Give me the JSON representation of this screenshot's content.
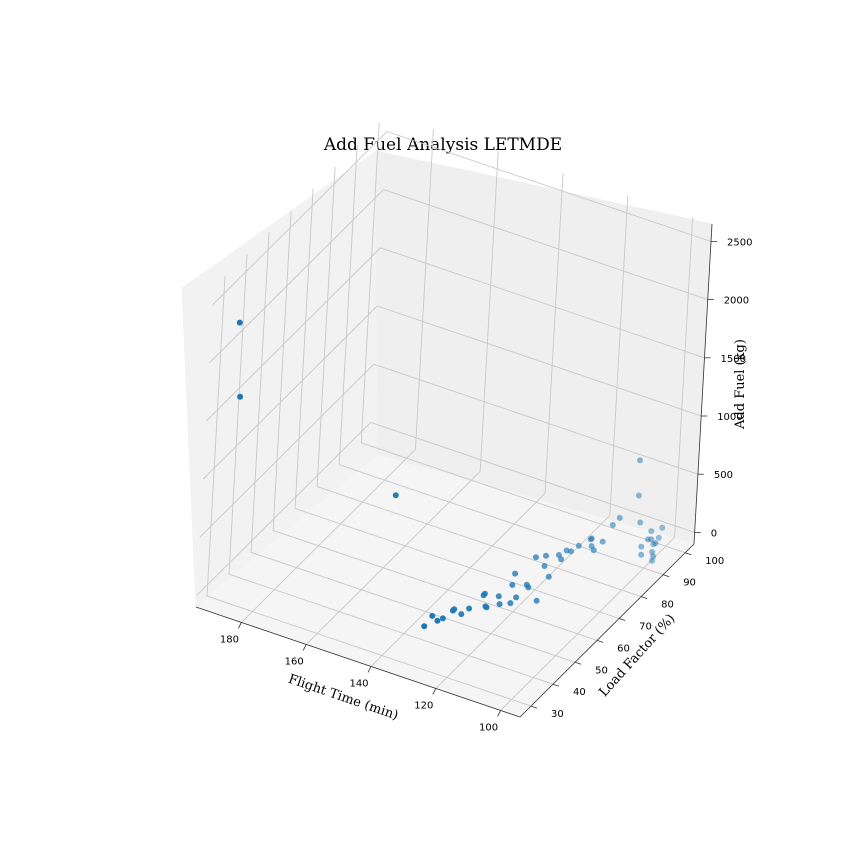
{
  "chart_data": {
    "type": "scatter",
    "title": "Add Fuel Analysis LETMDE",
    "xlabel": "Flight Time (min)",
    "ylabel": "Load Factor (%)",
    "zlabel": "Add Fuel (kg)",
    "xlim": [
      94,
      194
    ],
    "ylim": [
      25,
      104
    ],
    "zlim": [
      -100,
      2650
    ],
    "xticks": [
      100,
      120,
      140,
      160,
      180
    ],
    "yticks": [
      30,
      40,
      50,
      60,
      70,
      80,
      90,
      100
    ],
    "zticks": [
      0,
      500,
      1000,
      1500,
      2000,
      2500
    ],
    "grid": true,
    "marker_color": "#1f77b4",
    "series": [
      {
        "x": [
          190,
          188,
          165,
          108,
          110,
          105,
          112,
          109,
          111,
          115,
          111,
          113,
          115,
          114,
          116,
          118,
          117,
          119,
          121,
          120,
          124,
          113,
          117,
          118,
          119,
          120,
          121,
          122,
          123,
          124,
          125,
          126,
          127,
          128,
          129,
          130,
          131,
          132,
          133,
          134,
          104,
          102,
          103,
          101,
          102,
          100,
          99,
          101,
          103,
          100,
          98,
          97,
          125,
          120,
          116
        ],
        "y": [
          32,
          31,
          72,
          98,
          93,
          95,
          93,
          100,
          87,
          88,
          83,
          85,
          82,
          86,
          80,
          81,
          77,
          79,
          76,
          74,
          76,
          60,
          62,
          58,
          57,
          59,
          55,
          56,
          52,
          53,
          54,
          55,
          50,
          48,
          46,
          47,
          44,
          43,
          42,
          40,
          99,
          101,
          96,
          98,
          96,
          94,
          92,
          90,
          93,
          95,
          91,
          89,
          68,
          66,
          70
        ],
        "z": [
          2250,
          1650,
          250,
          600,
          180,
          150,
          100,
          250,
          80,
          50,
          80,
          60,
          100,
          90,
          80,
          50,
          60,
          40,
          70,
          30,
          30,
          60,
          100,
          80,
          40,
          150,
          50,
          90,
          60,
          40,
          120,
          80,
          50,
          30,
          100,
          60,
          40,
          30,
          80,
          20,
          10,
          20,
          5,
          0,
          15,
          30,
          10,
          5,
          0,
          20,
          0,
          10,
          30,
          20,
          50
        ]
      }
    ]
  }
}
